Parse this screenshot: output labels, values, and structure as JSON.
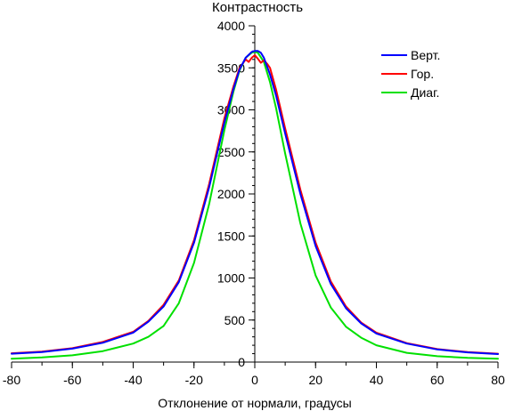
{
  "chart_data": {
    "type": "line",
    "title": "Контрастность",
    "xlabel": "Отклонение от нормали, градусы",
    "ylabel": "",
    "xlim": [
      -80,
      80
    ],
    "ylim": [
      0,
      4000
    ],
    "x_ticks": [
      -80,
      -60,
      -40,
      -20,
      0,
      20,
      40,
      60,
      80
    ],
    "y_ticks": [
      0,
      500,
      1000,
      1500,
      2000,
      2500,
      3000,
      3500,
      4000
    ],
    "x_minor_step": 10,
    "y_minor_step": 100,
    "grid": false,
    "legend_position": "top-right",
    "series": [
      {
        "name": "Верт.",
        "color": "#0000ff",
        "x": [
          -80,
          -70,
          -60,
          -50,
          -40,
          -35,
          -30,
          -25,
          -20,
          -15,
          -10,
          -7,
          -5,
          -3,
          -1,
          0,
          1,
          2,
          3,
          5,
          7,
          10,
          15,
          20,
          25,
          30,
          35,
          40,
          50,
          60,
          70,
          80
        ],
        "y": [
          100,
          120,
          160,
          230,
          350,
          480,
          660,
          950,
          1420,
          2080,
          2850,
          3250,
          3480,
          3620,
          3690,
          3700,
          3700,
          3680,
          3620,
          3420,
          3170,
          2720,
          2000,
          1380,
          930,
          640,
          460,
          340,
          220,
          150,
          115,
          95
        ]
      },
      {
        "name": "Гор.",
        "color": "#ff0000",
        "x": [
          -80,
          -70,
          -60,
          -50,
          -40,
          -35,
          -30,
          -25,
          -20,
          -15,
          -10,
          -7,
          -5,
          -3,
          -2,
          -1,
          0,
          1,
          2,
          3,
          4,
          5,
          7,
          10,
          15,
          20,
          25,
          30,
          35,
          40,
          50,
          60,
          70,
          80
        ],
        "y": [
          105,
          125,
          165,
          240,
          360,
          490,
          680,
          970,
          1450,
          2120,
          2900,
          3280,
          3500,
          3600,
          3570,
          3620,
          3650,
          3610,
          3560,
          3590,
          3550,
          3500,
          3240,
          2780,
          2050,
          1420,
          960,
          660,
          470,
          350,
          225,
          155,
          118,
          100
        ]
      },
      {
        "name": "Диаг.",
        "color": "#00e000",
        "x": [
          -80,
          -70,
          -60,
          -50,
          -40,
          -35,
          -30,
          -25,
          -20,
          -15,
          -10,
          -7,
          -5,
          -3,
          -1,
          0,
          1,
          3,
          5,
          7,
          10,
          15,
          20,
          25,
          30,
          35,
          40,
          50,
          60,
          70,
          80
        ],
        "y": [
          40,
          55,
          80,
          130,
          220,
          300,
          430,
          700,
          1180,
          1880,
          2760,
          3220,
          3470,
          3620,
          3680,
          3690,
          3680,
          3570,
          3330,
          3020,
          2480,
          1650,
          1030,
          650,
          420,
          290,
          200,
          110,
          70,
          50,
          40
        ]
      }
    ]
  }
}
